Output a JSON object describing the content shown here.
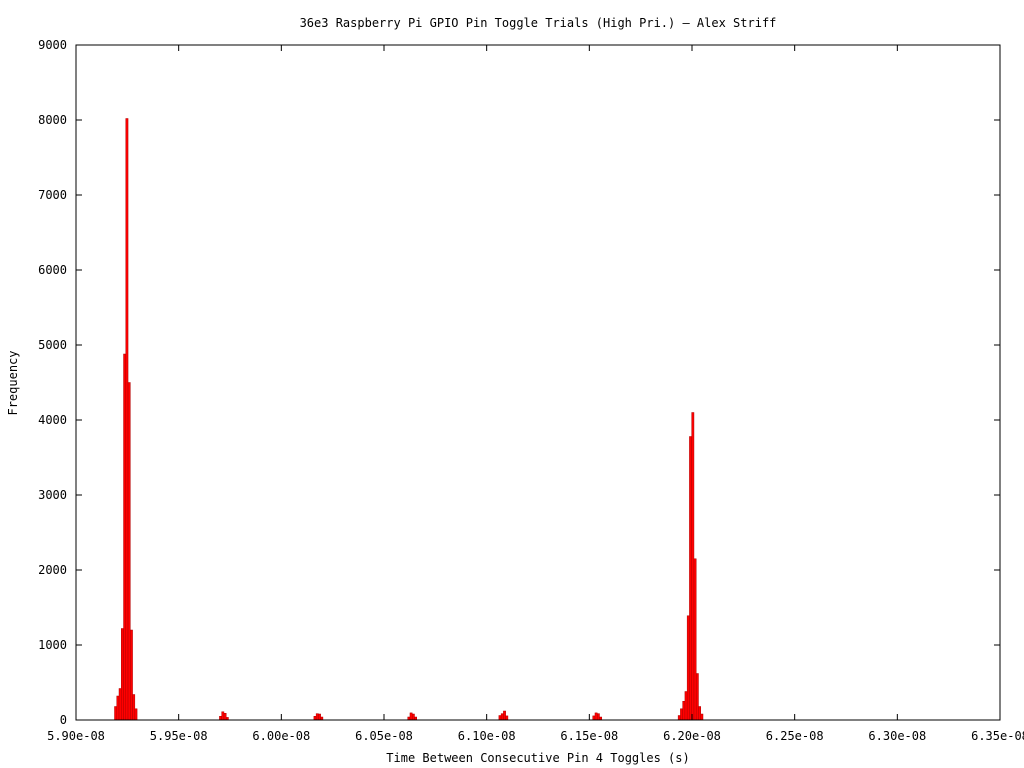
{
  "chart_data": {
    "type": "bar",
    "title": "36e3 Raspberry Pi GPIO Pin Toggle Trials (High Pri.) — Alex Striff",
    "xlabel": "Time Between Consecutive Pin 4 Toggles (s)",
    "ylabel": "Frequency",
    "xlim": [
      5.9e-08,
      6.35e-08
    ],
    "ylim": [
      0,
      9000
    ],
    "x_ticks": [
      {
        "value": 5.9e-08,
        "label": "5.90e-08"
      },
      {
        "value": 5.95e-08,
        "label": "5.95e-08"
      },
      {
        "value": 6e-08,
        "label": "6.00e-08"
      },
      {
        "value": 6.05e-08,
        "label": "6.05e-08"
      },
      {
        "value": 6.1e-08,
        "label": "6.10e-08"
      },
      {
        "value": 6.15e-08,
        "label": "6.15e-08"
      },
      {
        "value": 6.2e-08,
        "label": "6.20e-08"
      },
      {
        "value": 6.25e-08,
        "label": "6.25e-08"
      },
      {
        "value": 6.3e-08,
        "label": "6.30e-08"
      },
      {
        "value": 6.35e-08,
        "label": "6.35e-08"
      }
    ],
    "y_ticks": [
      {
        "value": 0,
        "label": "0"
      },
      {
        "value": 1000,
        "label": "1000"
      },
      {
        "value": 2000,
        "label": "2000"
      },
      {
        "value": 3000,
        "label": "3000"
      },
      {
        "value": 4000,
        "label": "4000"
      },
      {
        "value": 5000,
        "label": "5000"
      },
      {
        "value": 6000,
        "label": "6000"
      },
      {
        "value": 7000,
        "label": "7000"
      },
      {
        "value": 8000,
        "label": "8000"
      },
      {
        "value": 9000,
        "label": "9000"
      }
    ],
    "bar_color": "#ff0000",
    "bar_stroke": "#b00000",
    "bar_width": 1.1e-11,
    "grid": false,
    "x": [
      5.9193e-08,
      5.9204e-08,
      5.9215e-08,
      5.9226e-08,
      5.9237e-08,
      5.9248e-08,
      5.9259e-08,
      5.927e-08,
      5.9281e-08,
      5.9292e-08,
      5.9704e-08,
      5.9715e-08,
      5.9726e-08,
      5.9737e-08,
      6.0164e-08,
      6.0175e-08,
      6.0186e-08,
      6.0197e-08,
      6.0621e-08,
      6.0632e-08,
      6.0643e-08,
      6.0654e-08,
      6.1065e-08,
      6.1076e-08,
      6.1087e-08,
      6.1098e-08,
      6.1522e-08,
      6.1533e-08,
      6.1544e-08,
      6.1555e-08,
      6.1938e-08,
      6.1949e-08,
      6.196e-08,
      6.1971e-08,
      6.1982e-08,
      6.1993e-08,
      6.2004e-08,
      6.2015e-08,
      6.2026e-08,
      6.2037e-08,
      6.2048e-08
    ],
    "y": [
      180,
      320,
      420,
      1220,
      4880,
      8020,
      4500,
      1200,
      340,
      150,
      50,
      110,
      90,
      35,
      50,
      85,
      80,
      40,
      40,
      95,
      80,
      40,
      60,
      85,
      120,
      55,
      55,
      95,
      85,
      40,
      60,
      150,
      250,
      380,
      1390,
      3780,
      4100,
      2150,
      620,
      180,
      80
    ]
  }
}
